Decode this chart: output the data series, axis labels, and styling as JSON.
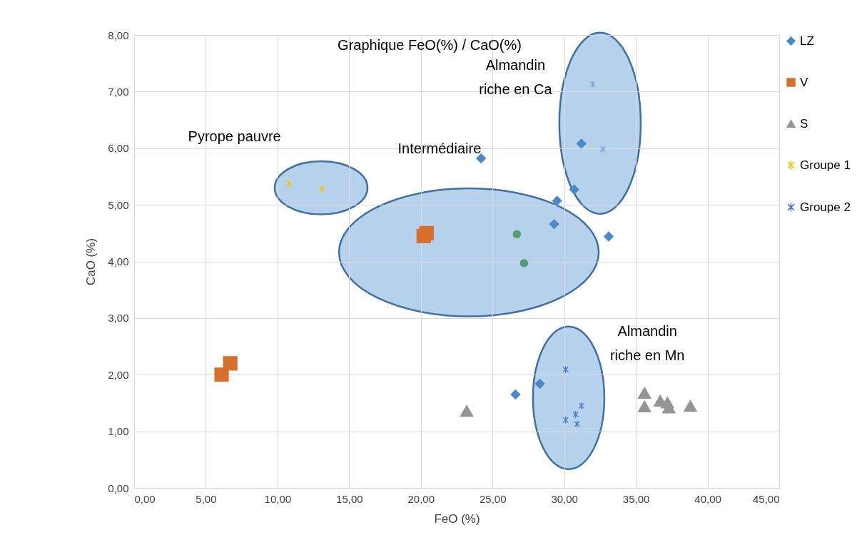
{
  "chart_data": {
    "type": "scatter",
    "title": "Graphique FeO(%) / CaO(%)",
    "xlabel": "FeO (%)",
    "ylabel": "CaO (%)",
    "xlim": [
      0,
      45
    ],
    "ylim": [
      0,
      8
    ],
    "xticks": [
      {
        "value": 0,
        "label": "0,00"
      },
      {
        "value": 5,
        "label": "5,00"
      },
      {
        "value": 10,
        "label": "10,00"
      },
      {
        "value": 15,
        "label": "15,00"
      },
      {
        "value": 20,
        "label": "20,00"
      },
      {
        "value": 25,
        "label": "25,00"
      },
      {
        "value": 30,
        "label": "30,00"
      },
      {
        "value": 35,
        "label": "35,00"
      },
      {
        "value": 40,
        "label": "40,00"
      },
      {
        "value": 45,
        "label": "45,00"
      }
    ],
    "yticks": [
      {
        "value": 0,
        "label": "0,00"
      },
      {
        "value": 1,
        "label": "1,00"
      },
      {
        "value": 2,
        "label": "2,00"
      },
      {
        "value": 3,
        "label": "3,00"
      },
      {
        "value": 4,
        "label": "4,00"
      },
      {
        "value": 5,
        "label": "5,00"
      },
      {
        "value": 6,
        "label": "6,00"
      },
      {
        "value": 7,
        "label": "7,00"
      },
      {
        "value": 8,
        "label": "8,00"
      }
    ],
    "grid": true,
    "legend": "right",
    "series": [
      {
        "name": "LZ",
        "color": "#4f88c6",
        "marker": "diamond",
        "x": [
          24.2,
          31.2,
          30.7,
          29.5,
          29.3,
          33.1,
          26.6,
          28.3
        ],
        "values": [
          5.82,
          6.08,
          5.27,
          5.07,
          4.66,
          4.44,
          1.65,
          1.84
        ]
      },
      {
        "name": "V",
        "color": "#d5702e",
        "marker": "square",
        "x": [
          6.1,
          6.7,
          20.2,
          20.4
        ],
        "values": [
          2.0,
          2.2,
          4.45,
          4.5
        ]
      },
      {
        "name": "S",
        "color": "#949494",
        "marker": "triangle",
        "x": [
          23.2,
          35.6,
          35.6,
          36.7,
          37.2,
          37.3,
          38.8
        ],
        "values": [
          1.36,
          1.68,
          1.44,
          1.54,
          1.51,
          1.42,
          1.45
        ]
      },
      {
        "name": "Groupe 1",
        "color": "#ffc000",
        "marker": "cross",
        "x": [
          10.8,
          13.1
        ],
        "values": [
          5.38,
          5.28
        ]
      },
      {
        "name": "Groupe 2",
        "color": "#4472c4",
        "marker": "cross",
        "x": [
          30.1,
          31.2,
          30.8,
          30.1,
          30.9
        ],
        "values": [
          2.09,
          1.45,
          1.3,
          1.2,
          1.13
        ]
      },
      {
        "color": "#5a9a7a",
        "marker": "circle",
        "x": [
          26.7,
          27.2
        ],
        "values": [
          4.48,
          3.97
        ]
      },
      {
        "color": "#7aa7d8",
        "marker": "cross",
        "x": [
          32.0,
          32.7
        ],
        "values": [
          7.13,
          5.98
        ]
      }
    ],
    "annotations": [
      "Pyrope pauvre",
      "Intermédiaire",
      "Almandin\nriche en Ca",
      "Almandin\n riche en Mn"
    ]
  }
}
